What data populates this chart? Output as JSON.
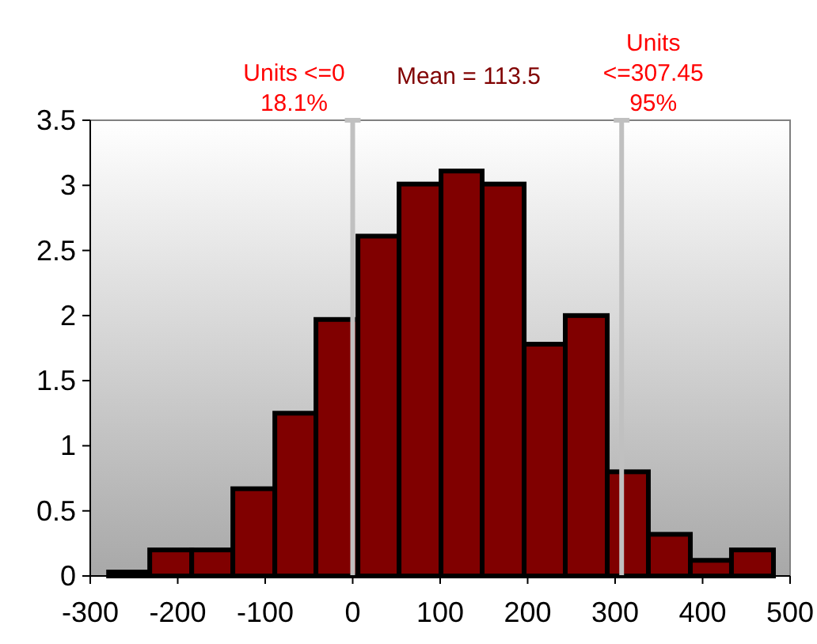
{
  "chart_data": {
    "type": "histogram",
    "bins": [
      -279,
      -232,
      -184,
      -137,
      -89,
      -42,
      6,
      53,
      101,
      148,
      196,
      243,
      291,
      338,
      386,
      433,
      481
    ],
    "values": [
      0.03,
      0.2,
      0.2,
      0.67,
      1.25,
      1.97,
      2.61,
      3.01,
      3.11,
      3.01,
      1.78,
      2.0,
      0.8,
      0.32,
      0.12,
      0.2
    ],
    "color": "#800000",
    "xlim": [
      -300,
      500
    ],
    "xticks": [
      -300,
      -200,
      -100,
      0,
      100,
      200,
      300,
      400,
      500
    ],
    "ylim": [
      0,
      3.5
    ],
    "yticks": [
      0,
      0.5,
      1,
      1.5,
      2,
      2.5,
      3,
      3.5
    ],
    "grid": false,
    "ref_lines": [
      {
        "axis": "x",
        "value": 0,
        "label": "Units <=0\n18.1%",
        "color": "#c0c0c0"
      },
      {
        "axis": "x",
        "value": 307.45,
        "label": "Units\n<=307.45\n95%",
        "color": "#c0c0c0"
      }
    ],
    "annotations": [
      "Mean = 113.5"
    ]
  }
}
